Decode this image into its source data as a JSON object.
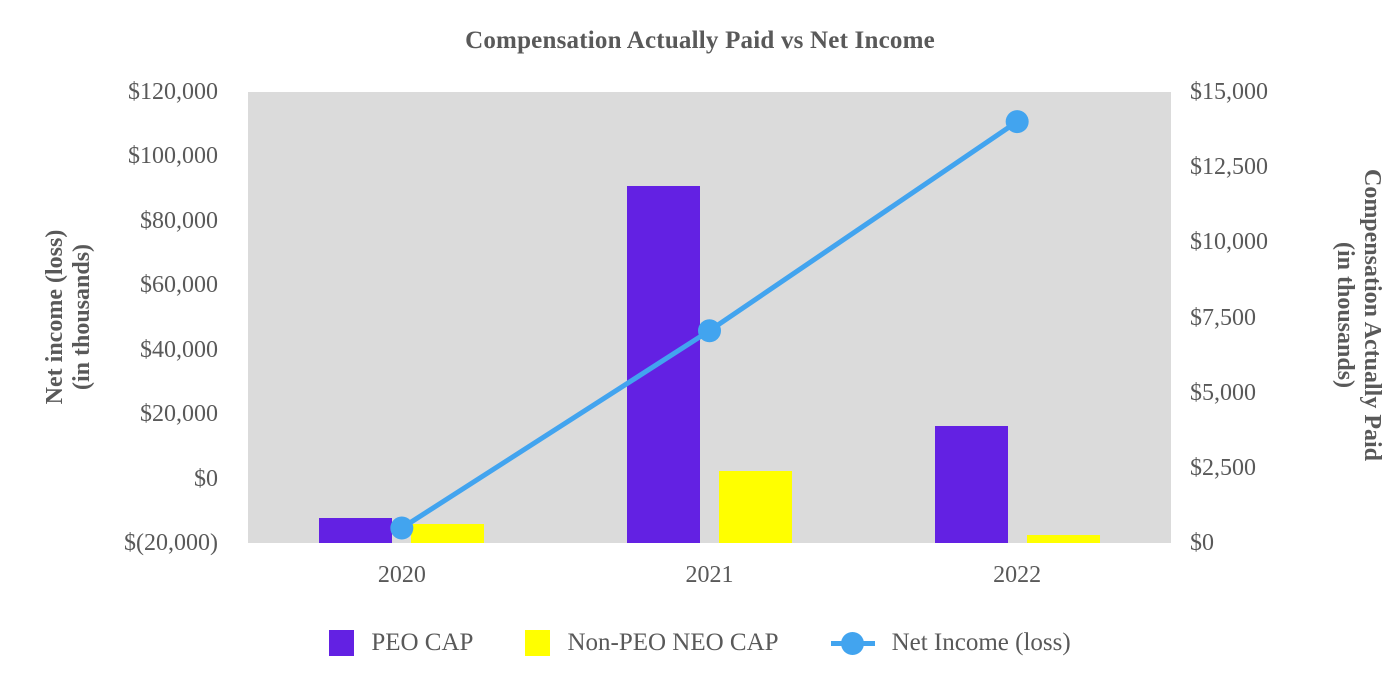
{
  "chart_data": {
    "type": "combo-bar-line",
    "title": "Compensation Actually Paid vs Net Income",
    "categories": [
      "2020",
      "2021",
      "2022"
    ],
    "series": [
      {
        "name": "PEO CAP",
        "type": "bar",
        "axis": "right",
        "color": "#6321E3",
        "values": [
          830,
          11880,
          3900
        ]
      },
      {
        "name": "Non-PEO NEO CAP",
        "type": "bar",
        "axis": "right",
        "color": "#FFFF00",
        "values": [
          630,
          2380,
          250
        ]
      },
      {
        "name": "Net Income (loss)",
        "type": "line",
        "axis": "left",
        "color": "#42A4EF",
        "values": [
          -15350,
          45900,
          110800
        ]
      }
    ],
    "left_axis": {
      "title_line1": "Net income (loss)",
      "title_line2": "(in thousands)",
      "min": -20000,
      "max": 120000,
      "tick_step": 20000,
      "tick_labels": [
        "$120,000",
        "$100,000",
        "$80,000",
        "$60,000",
        "$40,000",
        "$20,000",
        "$0",
        "$(20,000)"
      ]
    },
    "right_axis": {
      "title_line1": "Compensation Actually Paid",
      "title_line2": "(in thousands)",
      "min": 0,
      "max": 15000,
      "tick_step": 2500,
      "tick_labels": [
        "$15,000",
        "$12,500",
        "$10,000",
        "$7,500",
        "$5,000",
        "$2,500",
        "$0"
      ]
    },
    "legend_position": "bottom",
    "grid": false,
    "styles": {
      "text_color": "#595959",
      "plot_background": "#DBDBDB",
      "page_background": "#FFFFFF"
    }
  }
}
